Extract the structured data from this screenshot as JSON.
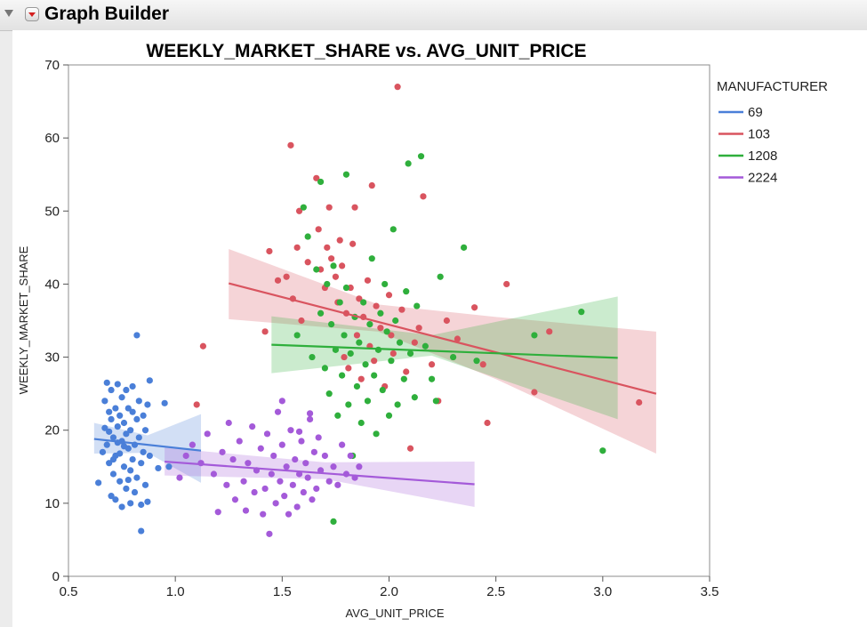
{
  "window": {
    "app_title": "Graph Builder"
  },
  "chart_data": {
    "type": "scatter",
    "title": "WEEKLY_MARKET_SHARE vs. AVG_UNIT_PRICE",
    "xlabel": "AVG_UNIT_PRICE",
    "ylabel": "WEEKLY_MARKET_SHARE",
    "xlim": [
      0.5,
      3.5
    ],
    "ylim": [
      0,
      70
    ],
    "x_ticks": [
      0.5,
      1.0,
      1.5,
      2.0,
      2.5,
      3.0,
      3.5
    ],
    "x_tick_labels": [
      "0.5",
      "1.0",
      "1.5",
      "2.0",
      "2.5",
      "3.0",
      "3.5"
    ],
    "y_ticks": [
      0,
      10,
      20,
      30,
      40,
      50,
      60,
      70
    ],
    "y_tick_labels": [
      "0",
      "10",
      "20",
      "30",
      "40",
      "50",
      "60",
      "70"
    ],
    "grid": false,
    "legend_title": "MANUFACTURER",
    "legend_position": "right",
    "series": [
      {
        "name": "69",
        "color": "#4a7fd8",
        "fit": {
          "x": [
            0.62,
            1.12
          ],
          "y": [
            18.8,
            17.2
          ],
          "band_lower": [
            [
              0.62,
              16.8
            ],
            [
              0.87,
              16.9
            ],
            [
              1.12,
              12.8
            ]
          ],
          "band_upper": [
            [
              0.62,
              21.0
            ],
            [
              0.87,
              19.3
            ],
            [
              1.12,
              22.2
            ]
          ]
        },
        "points": [
          [
            0.64,
            12.8
          ],
          [
            0.66,
            17.0
          ],
          [
            0.67,
            24.0
          ],
          [
            0.67,
            20.3
          ],
          [
            0.68,
            18.0
          ],
          [
            0.68,
            26.5
          ],
          [
            0.69,
            22.5
          ],
          [
            0.69,
            15.5
          ],
          [
            0.7,
            11.0
          ],
          [
            0.7,
            21.5
          ],
          [
            0.7,
            25.5
          ],
          [
            0.71,
            14.0
          ],
          [
            0.71,
            19.0
          ],
          [
            0.72,
            23.0
          ],
          [
            0.72,
            10.5
          ],
          [
            0.72,
            16.5
          ],
          [
            0.73,
            20.5
          ],
          [
            0.73,
            26.3
          ],
          [
            0.74,
            13.0
          ],
          [
            0.74,
            22.0
          ],
          [
            0.75,
            18.5
          ],
          [
            0.75,
            9.5
          ],
          [
            0.75,
            24.5
          ],
          [
            0.76,
            15.0
          ],
          [
            0.76,
            21.0
          ],
          [
            0.77,
            12.0
          ],
          [
            0.77,
            19.5
          ],
          [
            0.77,
            25.5
          ],
          [
            0.78,
            17.5
          ],
          [
            0.78,
            23.0
          ],
          [
            0.79,
            10.0
          ],
          [
            0.79,
            14.5
          ],
          [
            0.79,
            20.0
          ],
          [
            0.8,
            22.5
          ],
          [
            0.8,
            16.0
          ],
          [
            0.8,
            26.0
          ],
          [
            0.81,
            18.0
          ],
          [
            0.81,
            11.5
          ],
          [
            0.82,
            21.5
          ],
          [
            0.82,
            13.5
          ],
          [
            0.82,
            33.0
          ],
          [
            0.83,
            19.0
          ],
          [
            0.83,
            24.0
          ],
          [
            0.84,
            15.5
          ],
          [
            0.84,
            9.8
          ],
          [
            0.84,
            6.2
          ],
          [
            0.85,
            17.0
          ],
          [
            0.85,
            22.0
          ],
          [
            0.86,
            12.5
          ],
          [
            0.86,
            20.0
          ],
          [
            0.87,
            23.5
          ],
          [
            0.87,
            10.2
          ],
          [
            0.88,
            16.5
          ],
          [
            0.88,
            26.8
          ],
          [
            0.92,
            14.8
          ],
          [
            0.95,
            23.7
          ],
          [
            0.97,
            15.0
          ],
          [
            0.73,
            18.3
          ],
          [
            0.74,
            16.8
          ],
          [
            0.76,
            17.8
          ],
          [
            0.78,
            13.2
          ],
          [
            0.71,
            16.0
          ],
          [
            0.69,
            19.8
          ]
        ]
      },
      {
        "name": "103",
        "color": "#d9545f",
        "fit": {
          "x": [
            1.25,
            3.25
          ],
          "y": [
            40.1,
            25.0
          ],
          "band_lower": [
            [
              1.25,
              35.2
            ],
            [
              1.95,
              33.5
            ],
            [
              2.5,
              27.0
            ],
            [
              3.25,
              16.8
            ]
          ],
          "band_upper": [
            [
              1.25,
              44.8
            ],
            [
              1.95,
              37.2
            ],
            [
              2.5,
              35.5
            ],
            [
              3.25,
              33.5
            ]
          ]
        },
        "points": [
          [
            1.42,
            33.5
          ],
          [
            1.44,
            44.5
          ],
          [
            1.48,
            40.5
          ],
          [
            1.52,
            41.0
          ],
          [
            1.54,
            59.0
          ],
          [
            1.55,
            38.0
          ],
          [
            1.57,
            45.0
          ],
          [
            1.58,
            50.0
          ],
          [
            1.59,
            35.0
          ],
          [
            1.62,
            43.0
          ],
          [
            1.66,
            54.5
          ],
          [
            1.67,
            47.5
          ],
          [
            1.68,
            42.0
          ],
          [
            1.7,
            39.5
          ],
          [
            1.71,
            45.0
          ],
          [
            1.72,
            50.5
          ],
          [
            1.73,
            43.5
          ],
          [
            1.75,
            41.0
          ],
          [
            1.76,
            37.5
          ],
          [
            1.77,
            46.0
          ],
          [
            1.78,
            42.5
          ],
          [
            1.79,
            30.0
          ],
          [
            1.8,
            36.0
          ],
          [
            1.81,
            28.5
          ],
          [
            1.82,
            39.5
          ],
          [
            1.83,
            45.5
          ],
          [
            1.84,
            50.5
          ],
          [
            1.85,
            33.0
          ],
          [
            1.86,
            38.0
          ],
          [
            1.87,
            27.0
          ],
          [
            1.88,
            35.5
          ],
          [
            1.9,
            40.5
          ],
          [
            1.91,
            31.5
          ],
          [
            1.92,
            53.5
          ],
          [
            1.93,
            29.5
          ],
          [
            1.94,
            37.0
          ],
          [
            1.96,
            34.0
          ],
          [
            1.98,
            26.0
          ],
          [
            2.0,
            38.5
          ],
          [
            2.01,
            33.0
          ],
          [
            2.02,
            30.5
          ],
          [
            2.04,
            67.0
          ],
          [
            2.06,
            36.5
          ],
          [
            2.08,
            28.0
          ],
          [
            2.1,
            17.5
          ],
          [
            2.12,
            32.0
          ],
          [
            2.14,
            34.0
          ],
          [
            2.16,
            52.0
          ],
          [
            2.2,
            29.0
          ],
          [
            2.23,
            24.0
          ],
          [
            2.27,
            35.0
          ],
          [
            2.32,
            32.5
          ],
          [
            2.4,
            36.8
          ],
          [
            2.44,
            29.0
          ],
          [
            2.46,
            21.0
          ],
          [
            2.55,
            40.0
          ],
          [
            2.68,
            25.2
          ],
          [
            2.75,
            33.5
          ],
          [
            3.17,
            23.8
          ],
          [
            1.13,
            31.5
          ],
          [
            1.1,
            23.5
          ]
        ]
      },
      {
        "name": "1208",
        "color": "#2faf3c",
        "fit": {
          "x": [
            1.45,
            3.07
          ],
          "y": [
            31.7,
            29.9
          ],
          "band_lower": [
            [
              1.45,
              27.8
            ],
            [
              2.2,
              30.2
            ],
            [
              3.07,
              21.5
            ]
          ],
          "band_upper": [
            [
              1.45,
              35.6
            ],
            [
              2.2,
              33.0
            ],
            [
              3.07,
              38.3
            ]
          ]
        },
        "points": [
          [
            1.57,
            33.0
          ],
          [
            1.6,
            50.5
          ],
          [
            1.62,
            46.5
          ],
          [
            1.64,
            30.0
          ],
          [
            1.66,
            42.0
          ],
          [
            1.68,
            54.0
          ],
          [
            1.68,
            36.0
          ],
          [
            1.7,
            28.5
          ],
          [
            1.71,
            40.0
          ],
          [
            1.72,
            25.0
          ],
          [
            1.73,
            34.5
          ],
          [
            1.74,
            7.5
          ],
          [
            1.74,
            42.5
          ],
          [
            1.75,
            31.0
          ],
          [
            1.76,
            22.0
          ],
          [
            1.77,
            37.5
          ],
          [
            1.78,
            27.5
          ],
          [
            1.79,
            33.0
          ],
          [
            1.8,
            55.0
          ],
          [
            1.8,
            39.5
          ],
          [
            1.81,
            23.5
          ],
          [
            1.82,
            30.5
          ],
          [
            1.83,
            16.5
          ],
          [
            1.84,
            35.5
          ],
          [
            1.85,
            26.0
          ],
          [
            1.86,
            32.0
          ],
          [
            1.87,
            21.0
          ],
          [
            1.88,
            37.5
          ],
          [
            1.89,
            29.0
          ],
          [
            1.9,
            24.0
          ],
          [
            1.91,
            34.5
          ],
          [
            1.92,
            43.5
          ],
          [
            1.93,
            27.5
          ],
          [
            1.94,
            19.5
          ],
          [
            1.95,
            31.0
          ],
          [
            1.96,
            36.0
          ],
          [
            1.97,
            25.5
          ],
          [
            1.98,
            40.0
          ],
          [
            1.99,
            33.5
          ],
          [
            2.0,
            22.0
          ],
          [
            2.01,
            29.5
          ],
          [
            2.02,
            47.5
          ],
          [
            2.03,
            35.0
          ],
          [
            2.04,
            23.5
          ],
          [
            2.05,
            32.0
          ],
          [
            2.07,
            27.0
          ],
          [
            2.08,
            39.0
          ],
          [
            2.09,
            56.5
          ],
          [
            2.1,
            30.5
          ],
          [
            2.12,
            24.5
          ],
          [
            2.13,
            37.0
          ],
          [
            2.15,
            57.5
          ],
          [
            2.17,
            31.5
          ],
          [
            2.2,
            27.0
          ],
          [
            2.22,
            24.0
          ],
          [
            2.24,
            41.0
          ],
          [
            2.3,
            30.0
          ],
          [
            2.35,
            45.0
          ],
          [
            2.41,
            29.5
          ],
          [
            2.68,
            33.0
          ],
          [
            2.9,
            36.2
          ],
          [
            3.0,
            17.2
          ]
        ]
      },
      {
        "name": "2224",
        "color": "#a45ad9",
        "fit": {
          "x": [
            0.95,
            2.4
          ],
          "y": [
            15.7,
            12.6
          ],
          "band_lower": [
            [
              0.95,
              13.8
            ],
            [
              1.7,
              13.3
            ],
            [
              2.4,
              9.5
            ]
          ],
          "band_upper": [
            [
              0.95,
              17.6
            ],
            [
              1.7,
              15.6
            ],
            [
              2.4,
              15.7
            ]
          ]
        },
        "points": [
          [
            1.02,
            13.5
          ],
          [
            1.05,
            16.5
          ],
          [
            1.08,
            18.0
          ],
          [
            1.12,
            15.5
          ],
          [
            1.15,
            19.5
          ],
          [
            1.18,
            14.0
          ],
          [
            1.2,
            8.8
          ],
          [
            1.22,
            17.0
          ],
          [
            1.24,
            12.5
          ],
          [
            1.25,
            21.0
          ],
          [
            1.27,
            16.0
          ],
          [
            1.28,
            10.5
          ],
          [
            1.3,
            18.5
          ],
          [
            1.32,
            13.0
          ],
          [
            1.33,
            9.0
          ],
          [
            1.34,
            15.5
          ],
          [
            1.36,
            20.5
          ],
          [
            1.37,
            11.5
          ],
          [
            1.38,
            14.5
          ],
          [
            1.4,
            17.5
          ],
          [
            1.41,
            8.5
          ],
          [
            1.42,
            12.0
          ],
          [
            1.43,
            19.5
          ],
          [
            1.44,
            5.8
          ],
          [
            1.45,
            14.0
          ],
          [
            1.46,
            16.5
          ],
          [
            1.47,
            10.0
          ],
          [
            1.48,
            22.5
          ],
          [
            1.49,
            13.0
          ],
          [
            1.5,
            18.0
          ],
          [
            1.51,
            11.0
          ],
          [
            1.52,
            15.0
          ],
          [
            1.53,
            8.5
          ],
          [
            1.54,
            20.0
          ],
          [
            1.55,
            12.5
          ],
          [
            1.56,
            16.0
          ],
          [
            1.57,
            9.5
          ],
          [
            1.58,
            14.0
          ],
          [
            1.59,
            18.5
          ],
          [
            1.6,
            11.5
          ],
          [
            1.61,
            15.5
          ],
          [
            1.62,
            13.5
          ],
          [
            1.63,
            21.5
          ],
          [
            1.64,
            10.5
          ],
          [
            1.65,
            17.0
          ],
          [
            1.66,
            12.0
          ],
          [
            1.67,
            19.0
          ],
          [
            1.68,
            14.5
          ],
          [
            1.7,
            16.5
          ],
          [
            1.72,
            13.0
          ],
          [
            1.74,
            15.0
          ],
          [
            1.76,
            12.5
          ],
          [
            1.78,
            18.0
          ],
          [
            1.8,
            14.0
          ],
          [
            1.82,
            16.5
          ],
          [
            1.84,
            13.5
          ],
          [
            1.86,
            15.0
          ],
          [
            1.5,
            24.0
          ],
          [
            1.58,
            19.8
          ],
          [
            1.63,
            22.3
          ]
        ]
      }
    ]
  }
}
